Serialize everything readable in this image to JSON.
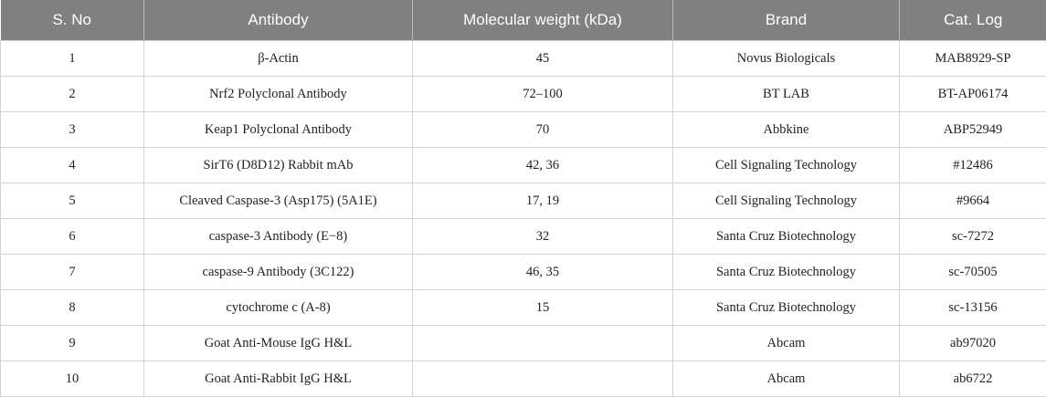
{
  "table": {
    "columns": [
      "S. No",
      "Antibody",
      "Molecular weight (kDa)",
      "Brand",
      "Cat. Log"
    ],
    "rows": [
      [
        1,
        "β-Actin",
        45,
        "Novus Biologicals",
        "MAB8929-SP"
      ],
      [
        2,
        "Nrf2 Polyclonal Antibody",
        "72–100",
        "BT LAB",
        "BT-AP06174"
      ],
      [
        3,
        "Keap1 Polyclonal Antibody",
        70,
        "Abbkine",
        "ABP52949"
      ],
      [
        4,
        "SirT6 (D8D12) Rabbit mAb",
        "42, 36",
        "Cell Signaling Technology",
        "#12486"
      ],
      [
        5,
        "Cleaved Caspase-3 (Asp175) (5A1E)",
        "17, 19",
        "Cell Signaling Technology",
        "#9664"
      ],
      [
        6,
        "caspase-3 Antibody (E−8)",
        32,
        "Santa Cruz Biotechnology",
        "sc-7272"
      ],
      [
        7,
        "caspase-9 Antibody (3C122)",
        "46, 35",
        "Santa Cruz Biotechnology",
        "sc-70505"
      ],
      [
        8,
        "cytochrome c (A-8)",
        15,
        "Santa Cruz Biotechnology",
        "sc-13156"
      ],
      [
        9,
        "Goat Anti-Mouse IgG H&L",
        null,
        "Abcam",
        "ab97020"
      ],
      [
        10,
        "Goat Anti-Rabbit IgG H&L",
        null,
        "Abcam",
        "ab6722"
      ]
    ]
  }
}
